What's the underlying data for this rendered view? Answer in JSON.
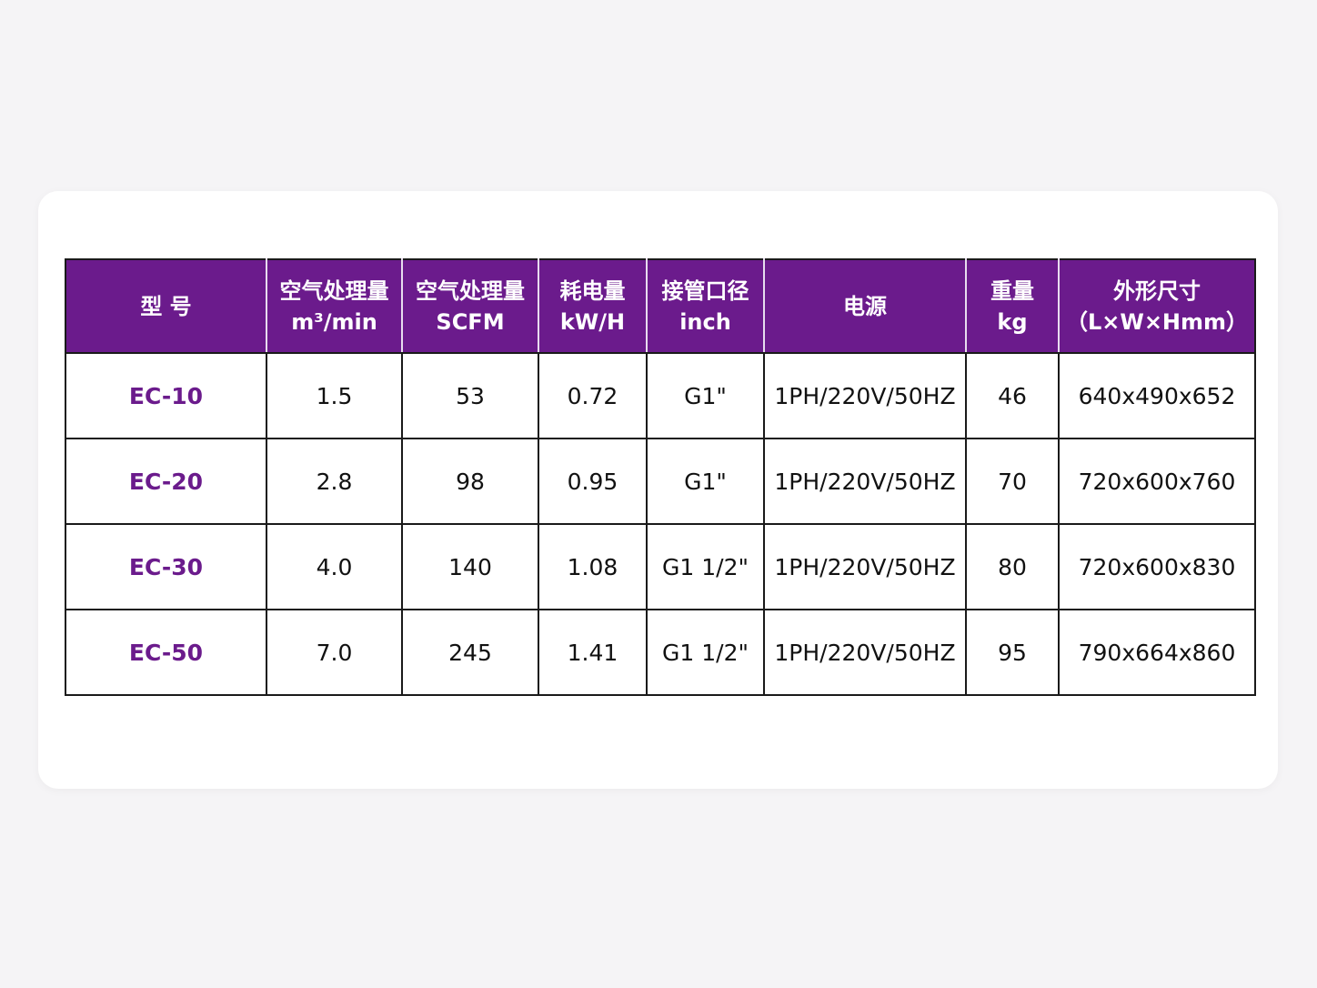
{
  "table": {
    "headers": [
      [
        "型 号"
      ],
      [
        "空气处理量",
        "m³/min"
      ],
      [
        "空气处理量",
        "SCFM"
      ],
      [
        "耗电量",
        "kW/H"
      ],
      [
        "接管口径",
        "inch"
      ],
      [
        "电源"
      ],
      [
        "重量",
        "kg"
      ],
      [
        "外形尺寸",
        "（L×W×Hmm）"
      ]
    ],
    "rows": [
      [
        "EC-10",
        "1.5",
        "53",
        "0.72",
        "G1\"",
        "1PH/220V/50HZ",
        "46",
        "640x490x652"
      ],
      [
        "EC-20",
        "2.8",
        "98",
        "0.95",
        "G1\"",
        "1PH/220V/50HZ",
        "70",
        "720x600x760"
      ],
      [
        "EC-30",
        "4.0",
        "140",
        "1.08",
        "G1 1/2\"",
        "1PH/220V/50HZ",
        "80",
        "720x600x830"
      ],
      [
        "EC-50",
        "7.0",
        "245",
        "1.41",
        "G1 1/2\"",
        "1PH/220V/50HZ",
        "95",
        "790x664x860"
      ]
    ]
  }
}
